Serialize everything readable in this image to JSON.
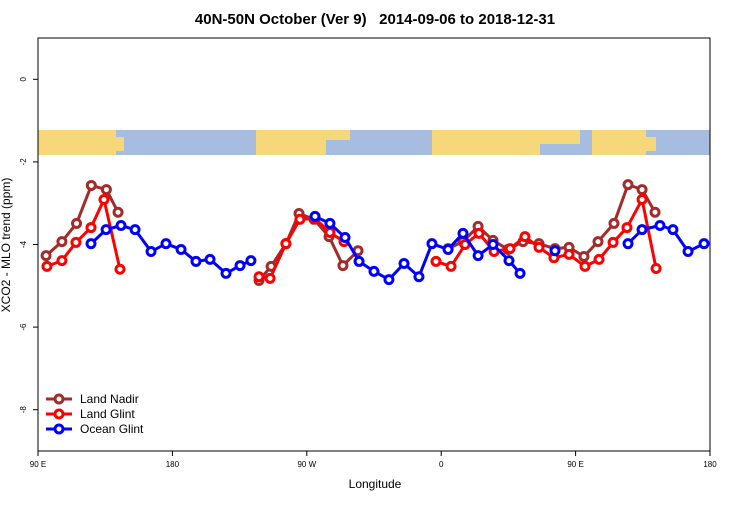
{
  "chart_data": {
    "type": "line",
    "title": "40N-50N October (Ver 9)   2014-09-06 to 2018-12-31",
    "x_label": "Longitude",
    "y_label": "XCO2 - MLO trend (ppm)",
    "xlim": [
      90,
      540
    ],
    "xticks": [
      {
        "value": 90,
        "label": "90 E"
      },
      {
        "value": 180,
        "label": "180"
      },
      {
        "value": 270,
        "label": "90 W"
      },
      {
        "value": 360,
        "label": "0"
      },
      {
        "value": 450,
        "label": "90 E"
      },
      {
        "value": 540,
        "label": "180"
      }
    ],
    "ylim": [
      -9,
      1
    ],
    "yticks": [
      0,
      -2,
      -4,
      -6,
      -8
    ],
    "legend": "bottom-left",
    "series": [
      {
        "name": "Land Nadir",
        "color": "#a52a2a",
        "x": [
          95.4,
          106,
          115.8,
          125.7,
          135.8,
          143.6,
          null,
          238,
          246.1,
          256,
          264.8,
          274.8,
          284.9,
          294.2,
          304.3,
          null,
          364.6,
          374.6,
          384.7,
          394.7,
          404.7,
          414.8,
          425.5,
          436.2,
          445.6,
          455.6,
          465,
          475.7,
          485.1,
          494.5,
          503.2
        ],
        "values": [
          -4.27,
          -3.93,
          -3.49,
          -2.57,
          -2.67,
          -3.22,
          null,
          -4.87,
          -4.53,
          -3.98,
          -3.25,
          -3.39,
          -3.81,
          -4.51,
          -4.15,
          null,
          -4.1,
          -3.93,
          -3.56,
          -3.9,
          -4.12,
          -3.93,
          -3.98,
          -4.1,
          -4.07,
          -4.29,
          -3.93,
          -3.49,
          -2.55,
          -2.67,
          -3.22
        ]
      },
      {
        "name": "Land Glint",
        "color": "#ff0000",
        "x": [
          96,
          106,
          115.4,
          125.5,
          134.2,
          144.9,
          null,
          238,
          245.4,
          256,
          265.4,
          275.5,
          285.5,
          294.9,
          null,
          356.5,
          366.6,
          376,
          385.3,
          395.4,
          406.1,
          416.1,
          425.5,
          435.5,
          445.6,
          456.3,
          465.7,
          475.1,
          484.4,
          494.5,
          503.9
        ],
        "values": [
          -4.53,
          -4.39,
          -3.95,
          -3.59,
          -2.91,
          -4.6,
          null,
          -4.78,
          -4.82,
          -3.98,
          -3.39,
          -3.37,
          -3.71,
          -3.93,
          null,
          -4.41,
          -4.53,
          -4,
          -3.73,
          -4.17,
          -4.1,
          -3.81,
          -4.07,
          -4.32,
          -4.24,
          -4.53,
          -4.36,
          -3.95,
          -3.59,
          -2.91,
          -4.58
        ]
      },
      {
        "name": "Ocean Glint",
        "color": "#0000ff",
        "x": [
          125.5,
          135.6,
          145.6,
          155,
          165.7,
          175.7,
          185.8,
          195.8,
          205.2,
          215.9,
          225.3,
          232.6,
          null,
          275.5,
          285.5,
          295.6,
          305,
          315,
          325,
          335.1,
          345.1,
          353.8,
          364.6,
          374.6,
          384.7,
          394.7,
          405.4,
          412.8,
          null,
          436.2,
          null,
          485.1,
          494.5,
          506.5,
          515.2,
          525.3,
          536
        ],
        "values": [
          -3.98,
          -3.64,
          -3.54,
          -3.64,
          -4.17,
          -3.98,
          -4.12,
          -4.41,
          -4.36,
          -4.7,
          -4.51,
          -4.39,
          null,
          -3.32,
          -3.49,
          -3.83,
          -4.41,
          -4.65,
          -4.85,
          -4.46,
          -4.78,
          -3.98,
          -4.12,
          -3.73,
          -4.27,
          -4,
          -4.39,
          -4.7,
          null,
          -4.15,
          null,
          -3.98,
          -3.64,
          -3.54,
          -3.64,
          -4.17,
          -3.98
        ]
      }
    ]
  }
}
